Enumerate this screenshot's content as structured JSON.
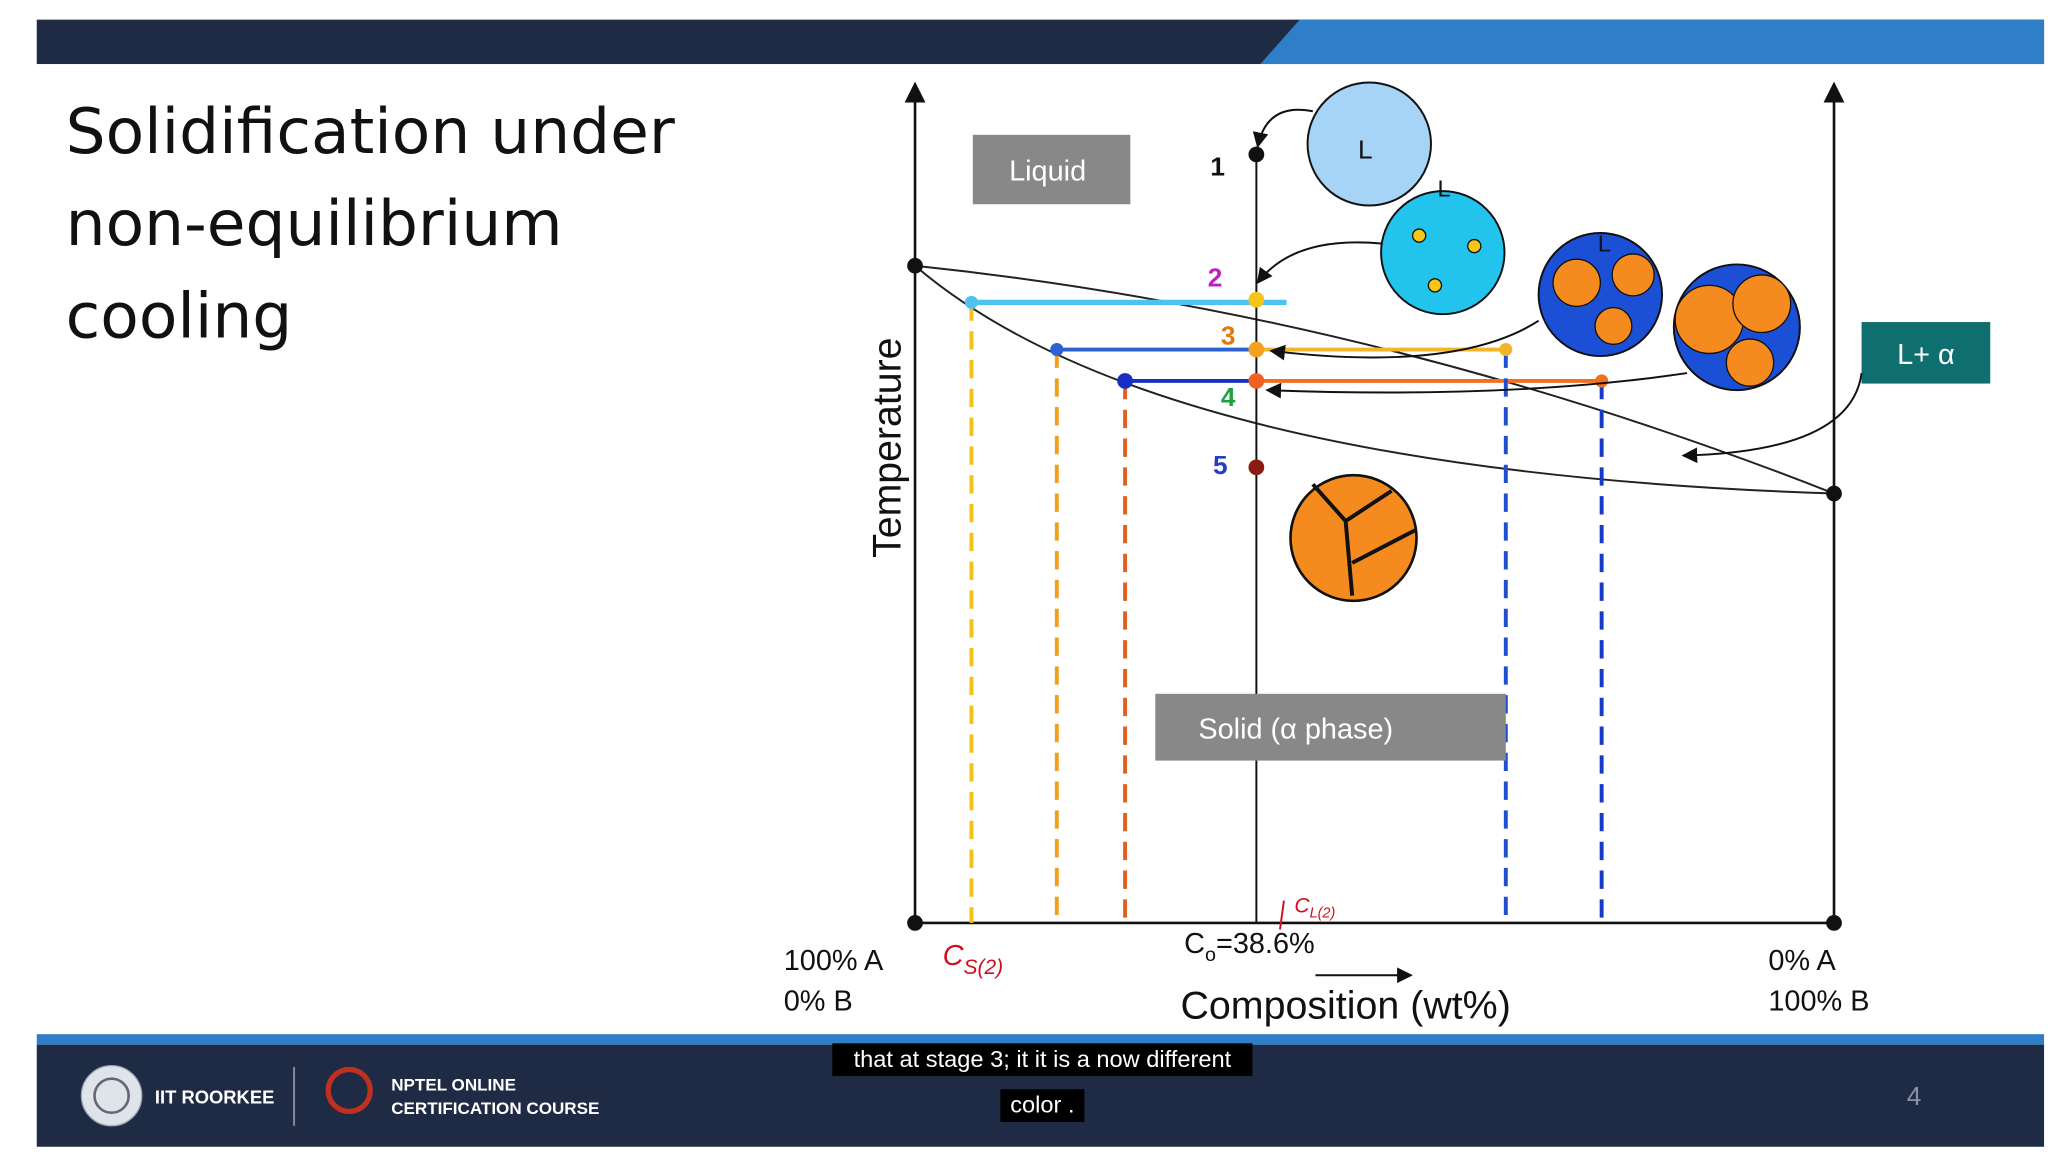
{
  "slide": {
    "title_lines": [
      "Solidification under",
      "non-equilibrium",
      "cooling"
    ],
    "page_number": "4"
  },
  "diagram": {
    "y_axis_label": "Temperature",
    "x_axis_label": "Composition (wt%)",
    "left_labels": [
      "100% A",
      "0% B"
    ],
    "right_labels": [
      "0% A",
      "100% B"
    ],
    "composition": {
      "symbol": "C",
      "subscript": "o",
      "value": "=38.6%"
    },
    "regions": {
      "liquid": "Liquid",
      "two_phase": "L+ α",
      "solid": "Solid (α phase)"
    },
    "stages": [
      "1",
      "2",
      "3",
      "4",
      "5"
    ],
    "grain_labels": [
      "L",
      "L",
      "L"
    ],
    "annotations": [
      {
        "symbol": "C",
        "subscript": "S(2)"
      },
      {
        "symbol": "C",
        "subscript": "L(2)"
      }
    ]
  },
  "footer": {
    "institute": "IIT ROORKEE",
    "course_lines": [
      "NPTEL ONLINE",
      "CERTIFICATION COURSE"
    ]
  },
  "caption_lines": [
    "that at stage 3; it it is a now different",
    "color ."
  ]
}
